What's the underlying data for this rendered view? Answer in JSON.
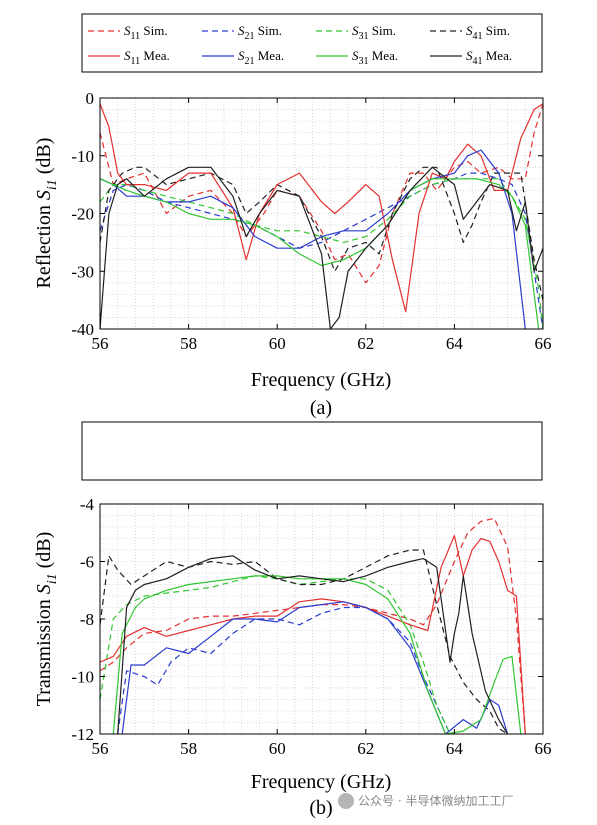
{
  "legend": {
    "entries": [
      {
        "sub": "11",
        "suffix": " Sim.",
        "color": "#e53030",
        "dash": true
      },
      {
        "sub": "21",
        "suffix": " Sim.",
        "color": "#2a3bd0",
        "dash": true
      },
      {
        "sub": "31",
        "suffix": " Sim.",
        "color": "#31c631",
        "dash": true
      },
      {
        "sub": "41",
        "suffix": " Sim.",
        "color": "#202020",
        "dash": true
      },
      {
        "sub": "11",
        "suffix": " Mea.",
        "color": "#e53030",
        "dash": false
      },
      {
        "sub": "21",
        "suffix": " Mea.",
        "color": "#2a3bd0",
        "dash": false
      },
      {
        "sub": "31",
        "suffix": " Mea.",
        "color": "#31c631",
        "dash": false
      },
      {
        "sub": "41",
        "suffix": " Mea.",
        "color": "#202020",
        "dash": false
      }
    ],
    "letter": "S"
  },
  "captions": {
    "a": "(a)",
    "b": "(b)"
  },
  "watermark": "公众号 · 半导体微纳加工工厂",
  "chart_data": [
    {
      "type": "line",
      "xlabel": "Frequency (GHz)",
      "ylabel_main": "Reflection",
      "ylabel_letter": "S",
      "ylabel_sub": "i1",
      "ylabel_unit": "(dB)",
      "xlim": [
        56,
        66
      ],
      "ylim": [
        -40,
        0
      ],
      "xticks": [
        56,
        58,
        60,
        62,
        64,
        66
      ],
      "yticks": [
        0,
        -10,
        -20,
        -30,
        -40
      ],
      "grid": "minor dotted",
      "series": [
        {
          "name": "S11 Sim.",
          "color": "#e53030",
          "dash": true,
          "x": [
            56,
            56.3,
            56.6,
            57,
            57.5,
            58,
            58.5,
            59,
            59.3,
            59.7,
            60,
            60.5,
            61,
            61.3,
            61.6,
            62,
            62.3,
            62.6,
            63,
            63.3,
            63.6,
            64,
            64.3,
            64.6,
            65,
            65.3,
            65.6,
            65.8,
            66
          ],
          "y": [
            -6,
            -15,
            -14,
            -13,
            -20,
            -17,
            -16,
            -20,
            -24,
            -20,
            -16,
            -17,
            -23,
            -28,
            -27,
            -32,
            -29,
            -20,
            -13,
            -13,
            -16,
            -12,
            -11,
            -13,
            -12,
            -14,
            -14,
            -6,
            -1
          ]
        },
        {
          "name": "S21 Sim.",
          "color": "#2a3bd0",
          "dash": true,
          "x": [
            56,
            56.3,
            56.6,
            57,
            57.5,
            58,
            58.5,
            59,
            59.5,
            60,
            60.5,
            61,
            61.5,
            62,
            62.5,
            63,
            63.5,
            64,
            64.3,
            64.6,
            65,
            65.3,
            65.6,
            65.8,
            66
          ],
          "y": [
            -23,
            -16,
            -15,
            -16,
            -18,
            -19,
            -20,
            -21,
            -22,
            -24,
            -26,
            -25,
            -23,
            -21,
            -19,
            -17,
            -15,
            -14,
            -13,
            -13,
            -14,
            -15,
            -20,
            -30,
            -40
          ]
        },
        {
          "name": "S31 Sim.",
          "color": "#31c631",
          "dash": true,
          "x": [
            56,
            56.3,
            56.6,
            57,
            57.5,
            58,
            58.5,
            59,
            59.5,
            60,
            60.5,
            61,
            61.5,
            62,
            62.5,
            63,
            63.5,
            64,
            64.5,
            65,
            65.3,
            65.6,
            65.9,
            66
          ],
          "y": [
            -18,
            -15,
            -15,
            -16,
            -17,
            -18,
            -19,
            -20,
            -22,
            -23,
            -23,
            -24,
            -25,
            -24,
            -21,
            -17,
            -15,
            -14,
            -14,
            -14,
            -17,
            -21,
            -33,
            -40
          ]
        },
        {
          "name": "S41 Sim.",
          "color": "#202020",
          "dash": true,
          "x": [
            56,
            56.2,
            56.5,
            56.8,
            57,
            57.5,
            58,
            58.5,
            59,
            59.3,
            59.6,
            60,
            60.5,
            61,
            61.3,
            61.6,
            62,
            62.3,
            62.6,
            63,
            63.3,
            63.6,
            64,
            64.2,
            64.4,
            64.6,
            64.9,
            65.2,
            65.5,
            65.8,
            66
          ],
          "y": [
            -25,
            -16,
            -13,
            -12,
            -12,
            -15,
            -14,
            -13,
            -15,
            -20,
            -18,
            -15,
            -17,
            -24,
            -30,
            -26,
            -25,
            -27,
            -20,
            -14,
            -12,
            -12,
            -20,
            -25,
            -22,
            -18,
            -13,
            -13,
            -13,
            -28,
            -35
          ]
        },
        {
          "name": "S11 Mea.",
          "color": "#e53030",
          "dash": false,
          "x": [
            56,
            56.2,
            56.4,
            56.6,
            56.8,
            57,
            57.5,
            58,
            58.5,
            59,
            59.3,
            59.6,
            60,
            60.5,
            61,
            61.3,
            61.6,
            62,
            62.3,
            62.6,
            62.9,
            63.2,
            63.5,
            63.8,
            64,
            64.3,
            64.6,
            64.9,
            65.2,
            65.5,
            65.8,
            66
          ],
          "y": [
            -1,
            -5,
            -13,
            -15,
            -15,
            -15,
            -16,
            -13,
            -13,
            -19,
            -28,
            -20,
            -15,
            -13,
            -18,
            -20,
            -18,
            -15,
            -17,
            -28,
            -37,
            -20,
            -13,
            -14,
            -11,
            -8,
            -10,
            -16,
            -16,
            -7,
            -2,
            -1
          ]
        },
        {
          "name": "S21 Mea.",
          "color": "#2a3bd0",
          "dash": false,
          "x": [
            56,
            56.3,
            56.6,
            57,
            57.5,
            58,
            58.5,
            59,
            59.5,
            60,
            60.5,
            61,
            61.5,
            62,
            62.5,
            63,
            63.5,
            64,
            64.3,
            64.6,
            65,
            65.3,
            65.6
          ],
          "y": [
            -14,
            -15,
            -17,
            -17,
            -18,
            -18,
            -17,
            -19,
            -24,
            -26,
            -26,
            -24,
            -23,
            -23,
            -20,
            -16,
            -14,
            -13,
            -10,
            -9,
            -13,
            -20,
            -40
          ]
        },
        {
          "name": "S31 Mea.",
          "color": "#31c631",
          "dash": false,
          "x": [
            56,
            56.3,
            56.6,
            57,
            57.5,
            58,
            58.5,
            59,
            59.5,
            60,
            60.5,
            61,
            61.5,
            62,
            62.5,
            63,
            63.5,
            64,
            64.5,
            65,
            65.3,
            65.6,
            65.9
          ],
          "y": [
            -14,
            -15,
            -16,
            -17,
            -18,
            -20,
            -21,
            -21,
            -22,
            -24,
            -27,
            -29,
            -28,
            -26,
            -22,
            -16,
            -14,
            -14,
            -14,
            -15,
            -17,
            -22,
            -40
          ]
        },
        {
          "name": "S41 Mea.",
          "color": "#202020",
          "dash": false,
          "x": [
            56,
            56.2,
            56.4,
            56.6,
            57,
            57.5,
            58,
            58.5,
            59,
            59.3,
            59.6,
            60,
            60.5,
            61,
            61.2,
            61.4,
            61.6,
            62,
            62.5,
            63,
            63.5,
            64,
            64.2,
            64.5,
            64.8,
            65.2,
            65.4,
            65.6,
            65.8,
            66
          ],
          "y": [
            -40,
            -20,
            -15,
            -14,
            -17,
            -14,
            -12,
            -12,
            -17,
            -24,
            -20,
            -16,
            -17,
            -27,
            -40,
            -38,
            -30,
            -26,
            -22,
            -16,
            -12,
            -15,
            -21,
            -18,
            -15,
            -16,
            -23,
            -18,
            -30,
            -26
          ]
        }
      ]
    },
    {
      "type": "line",
      "xlabel": "Frequency (GHz)",
      "ylabel_main": "Transmission",
      "ylabel_letter": "S",
      "ylabel_sub": "i1",
      "ylabel_unit": "(dB)",
      "xlim": [
        56,
        66
      ],
      "ylim": [
        -12,
        -4
      ],
      "xticks": [
        56,
        58,
        60,
        62,
        64,
        66
      ],
      "yticks": [
        -4,
        -6,
        -8,
        -10,
        -12
      ],
      "grid": "minor dotted",
      "series": [
        {
          "name": "S11 Sim.",
          "color": "#e53030",
          "dash": true,
          "x": [
            56,
            56.3,
            56.6,
            57,
            57.5,
            58,
            58.5,
            59,
            59.5,
            60,
            60.5,
            61,
            61.5,
            62,
            62.5,
            63,
            63.3,
            63.6,
            64,
            64.3,
            64.6,
            64.9,
            65.2,
            65.4,
            65.6
          ],
          "y": [
            -9.8,
            -9.5,
            -9,
            -8.5,
            -8.4,
            -8,
            -7.9,
            -7.9,
            -7.8,
            -7.7,
            -7.6,
            -7.5,
            -7.5,
            -7.6,
            -7.8,
            -8,
            -8.2,
            -7.5,
            -6,
            -5,
            -4.6,
            -4.5,
            -5.5,
            -8,
            -12
          ]
        },
        {
          "name": "S21 Sim.",
          "color": "#2a3bd0",
          "dash": true,
          "x": [
            56.4,
            56.6,
            57,
            57.3,
            57.6,
            58,
            58.5,
            59,
            59.5,
            60,
            60.5,
            61,
            61.5,
            62,
            62.5,
            63,
            63.3,
            63.6,
            63.9
          ],
          "y": [
            -12,
            -9.8,
            -10,
            -10.3,
            -9.5,
            -9,
            -9.2,
            -8.5,
            -8,
            -8,
            -8.2,
            -7.8,
            -7.6,
            -7.6,
            -8,
            -8.8,
            -10,
            -11,
            -12
          ]
        },
        {
          "name": "S31 Sim.",
          "color": "#31c631",
          "dash": true,
          "x": [
            56,
            56.3,
            56.6,
            57,
            57.5,
            58,
            58.5,
            59,
            59.5,
            60,
            60.5,
            61,
            61.5,
            62,
            62.5,
            63,
            63.3,
            63.6,
            63.9
          ],
          "y": [
            -10.8,
            -8,
            -7.5,
            -7.2,
            -7.1,
            -7,
            -6.9,
            -6.7,
            -6.5,
            -6.6,
            -6.8,
            -6.7,
            -6.6,
            -6.6,
            -7,
            -8.2,
            -9.5,
            -11,
            -12
          ]
        },
        {
          "name": "S41 Sim.",
          "color": "#202020",
          "dash": true,
          "x": [
            56,
            56.2,
            56.4,
            56.7,
            57,
            57.5,
            58,
            58.5,
            59,
            59.5,
            60,
            60.5,
            61,
            61.5,
            62,
            62.5,
            63,
            63.3,
            63.6,
            63.9,
            64.2,
            64.5,
            64.8,
            65,
            65.2
          ],
          "y": [
            -8.2,
            -5.8,
            -6.3,
            -6.8,
            -6.5,
            -6,
            -6.2,
            -6,
            -6.1,
            -6,
            -6.6,
            -6.8,
            -6.8,
            -6.6,
            -6.2,
            -5.8,
            -5.6,
            -5.6,
            -7.5,
            -9.3,
            -10.2,
            -10.8,
            -11.2,
            -11.8,
            -12
          ]
        },
        {
          "name": "S11 Mea.",
          "color": "#e53030",
          "dash": false,
          "x": [
            56,
            56.3,
            56.6,
            57,
            57.5,
            58,
            58.5,
            59,
            59.5,
            60,
            60.5,
            61,
            61.5,
            62,
            62.5,
            63,
            63.4,
            63.7,
            64,
            64.2,
            64.4,
            64.6,
            64.8,
            65,
            65.2,
            65.4,
            65.6
          ],
          "y": [
            -9.5,
            -9.3,
            -8.6,
            -8.3,
            -8.6,
            -8.4,
            -8.2,
            -8,
            -7.9,
            -7.9,
            -7.4,
            -7.3,
            -7.4,
            -7.6,
            -7.9,
            -8.2,
            -8.4,
            -6.2,
            -5.1,
            -6.5,
            -5.6,
            -5.2,
            -5.3,
            -6,
            -7,
            -7.2,
            -12
          ]
        },
        {
          "name": "S21 Mea.",
          "color": "#2a3bd0",
          "dash": false,
          "x": [
            56.5,
            56.7,
            57,
            57.5,
            58,
            58.5,
            59,
            59.5,
            60,
            60.5,
            61,
            61.5,
            62,
            62.5,
            63,
            63.4,
            63.8,
            64.2,
            64.5,
            64.8,
            65,
            65.2
          ],
          "y": [
            -12,
            -9.6,
            -9.6,
            -9,
            -9.2,
            -8.6,
            -8,
            -8,
            -8.1,
            -7.6,
            -7.5,
            -7.4,
            -7.6,
            -8,
            -9,
            -10.5,
            -12,
            -11.5,
            -11.8,
            -10.8,
            -11,
            -12
          ]
        },
        {
          "name": "S31 Mea.",
          "color": "#31c631",
          "dash": false,
          "x": [
            56.3,
            56.5,
            56.8,
            57,
            57.5,
            58,
            58.5,
            59,
            59.5,
            60,
            60.5,
            61,
            61.5,
            62,
            62.5,
            63,
            63.4,
            63.8,
            64.2,
            64.6,
            64.9,
            65.1,
            65.3,
            65.5
          ],
          "y": [
            -12,
            -8.5,
            -7.6,
            -7.3,
            -7,
            -6.8,
            -6.7,
            -6.6,
            -6.5,
            -6.5,
            -6.6,
            -6.6,
            -6.6,
            -6.8,
            -7.3,
            -8.5,
            -10.5,
            -12,
            -11.9,
            -11.5,
            -10.2,
            -9.4,
            -9.3,
            -12
          ]
        },
        {
          "name": "S41 Mea.",
          "color": "#202020",
          "dash": false,
          "x": [
            56.4,
            56.6,
            56.8,
            57,
            57.5,
            58,
            58.5,
            59,
            59.5,
            60,
            60.5,
            61,
            61.5,
            62,
            62.5,
            63,
            63.3,
            63.6,
            63.9,
            64,
            64.1,
            64.2,
            64.4,
            64.7,
            65,
            65.2
          ],
          "y": [
            -12,
            -7.6,
            -7,
            -6.8,
            -6.6,
            -6.2,
            -5.9,
            -5.8,
            -6.3,
            -6.6,
            -6.5,
            -6.6,
            -6.7,
            -6.5,
            -6.2,
            -6,
            -5.9,
            -6.2,
            -9.5,
            -8.5,
            -7.8,
            -6.5,
            -8.5,
            -10.5,
            -11.5,
            -12
          ]
        }
      ]
    }
  ]
}
